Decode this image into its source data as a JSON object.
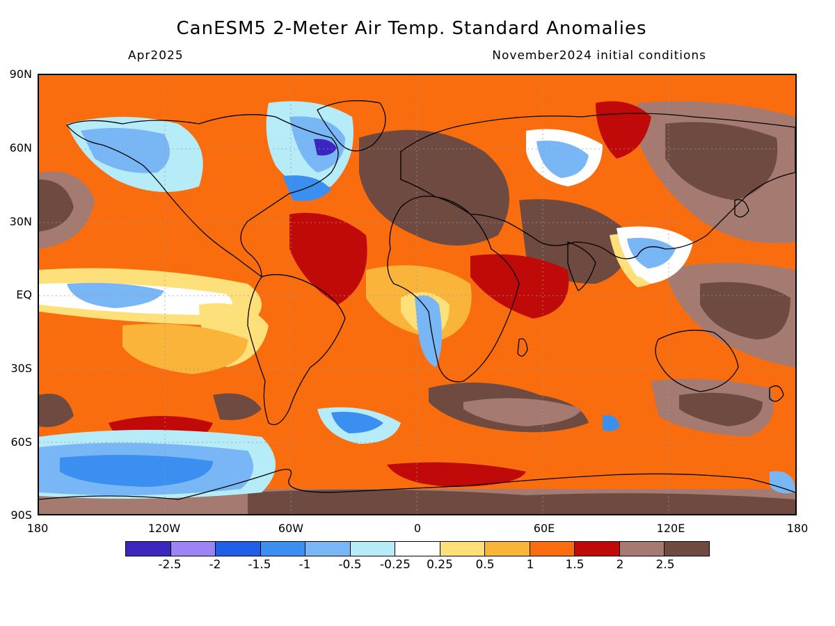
{
  "title": "CanESM5 2-Meter Air Temp. Standard Anomalies",
  "subtitle_left": "Apr2025",
  "subtitle_right": "November2024 initial conditions",
  "lat_labels": [
    "90N",
    "60N",
    "30N",
    "EQ",
    "30S",
    "60S",
    "90S"
  ],
  "lon_labels": [
    "180",
    "120W",
    "60W",
    "0",
    "60E",
    "120E",
    "180"
  ],
  "colorbar": {
    "colors": [
      "#3b26c0",
      "#9c84f4",
      "#1f5ee8",
      "#3a8ff0",
      "#78b6f6",
      "#b5ecf8",
      "#ffffff",
      "#fde07a",
      "#fbb43a",
      "#f96d0e",
      "#c00a0a",
      "#a57a70",
      "#6e4a40"
    ],
    "labels": [
      "-2.5",
      "-2",
      "-1.5",
      "-1",
      "-0.5",
      "-0.25",
      "0.25",
      "0.5",
      "1",
      "1.5",
      "2",
      "2.5"
    ]
  }
}
